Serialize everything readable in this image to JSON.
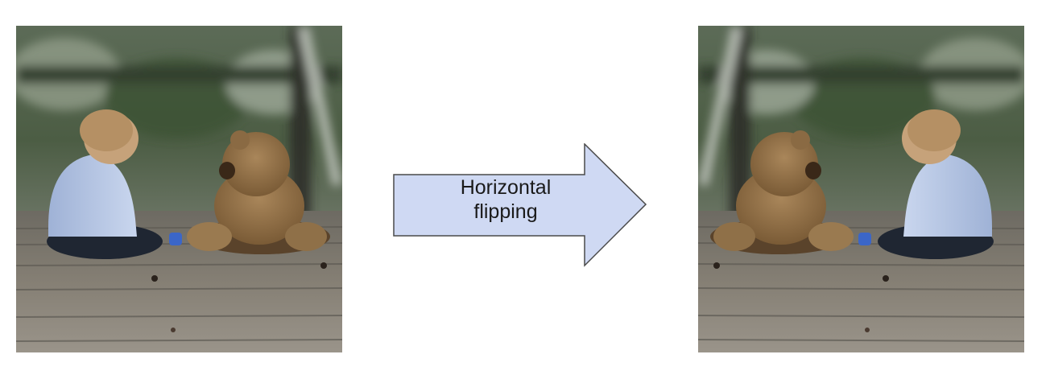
{
  "arrow": {
    "label_line1": "Horizontal",
    "label_line2": "flipping",
    "fill": "#cfd9f3",
    "stroke": "#4a4a4a"
  },
  "images": {
    "left": {
      "subject": "child-and-teddy-bear-photo",
      "orientation": "original"
    },
    "right": {
      "subject": "child-and-teddy-bear-photo",
      "orientation": "flipped"
    }
  }
}
